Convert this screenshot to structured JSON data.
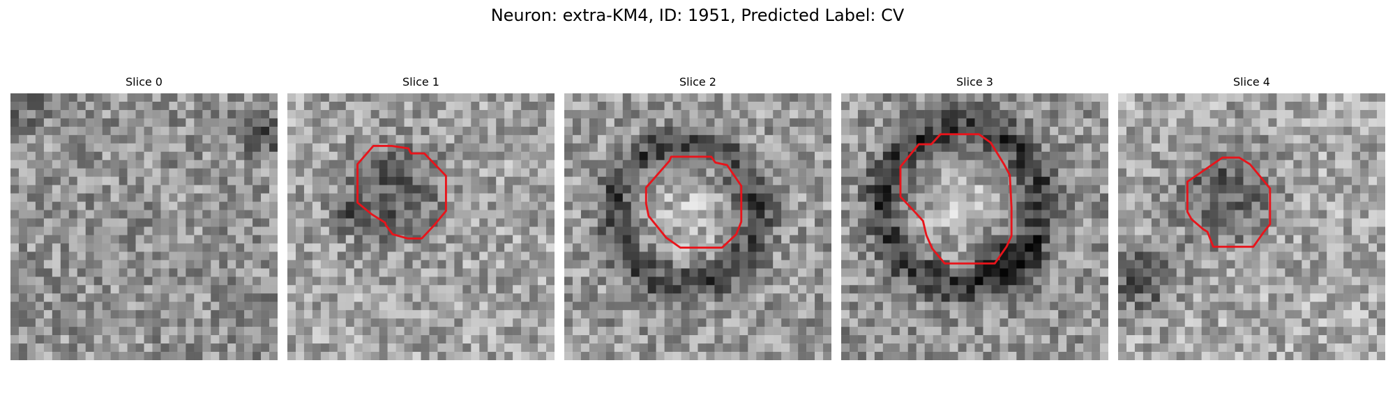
{
  "figure": {
    "title": "Neuron: extra-KM4, ID: 1951, Predicted Label: CV"
  },
  "contour_color": "#e8141b",
  "slices": [
    {
      "title": "Slice 0",
      "has_contour": false
    },
    {
      "title": "Slice 1",
      "has_contour": true
    },
    {
      "title": "Slice 2",
      "has_contour": true
    },
    {
      "title": "Slice 3",
      "has_contour": true
    },
    {
      "title": "Slice 4",
      "has_contour": true
    }
  ]
}
